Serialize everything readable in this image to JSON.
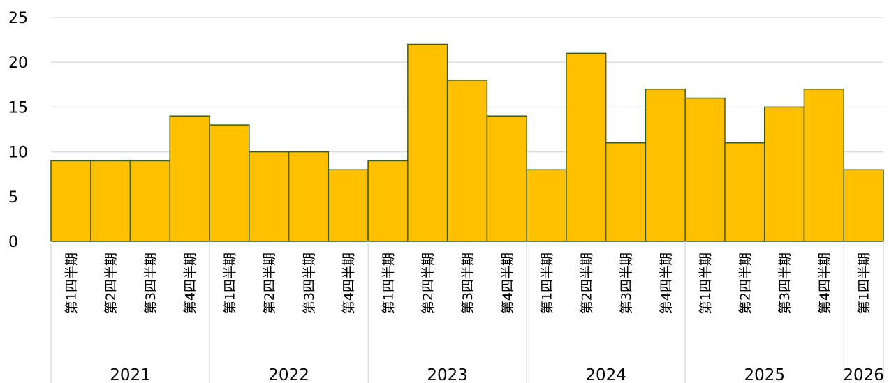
{
  "chart_data": {
    "type": "bar",
    "title": "",
    "xlabel": "",
    "ylabel": "",
    "ylim": [
      0,
      25
    ],
    "yticks": [
      0,
      5,
      10,
      15,
      20,
      25
    ],
    "grid": true,
    "legend": "none",
    "colors": {
      "bar_fill": "#FFC000",
      "bar_stroke": "#3A5A1A",
      "grid": "#D9D9D9"
    },
    "groups": [
      {
        "year": "2021",
        "quarters": [
          "第1四半期",
          "第2四半期",
          "第3四半期",
          "第4四半期"
        ]
      },
      {
        "year": "2022",
        "quarters": [
          "第1四半期",
          "第2四半期",
          "第3四半期",
          "第4四半期"
        ]
      },
      {
        "year": "2023",
        "quarters": [
          "第1四半期",
          "第2四半期",
          "第3四半期",
          "第4四半期"
        ]
      },
      {
        "year": "2024",
        "quarters": [
          "第1四半期",
          "第2四半期",
          "第3四半期",
          "第4四半期"
        ]
      },
      {
        "year": "2025",
        "quarters": [
          "第1四半期",
          "第2四半期",
          "第3四半期",
          "第4四半期"
        ]
      },
      {
        "year": "2026",
        "quarters": [
          "第1四半期"
        ]
      }
    ],
    "values": [
      9,
      9,
      9,
      14,
      13,
      10,
      10,
      8,
      9,
      22,
      18,
      14,
      8,
      21,
      11,
      17,
      16,
      11,
      15,
      17,
      8
    ]
  }
}
